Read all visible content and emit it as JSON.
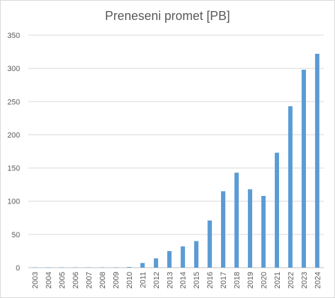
{
  "chart_data": {
    "type": "bar",
    "title": "Preneseni promet [PB]",
    "xlabel": "",
    "ylabel": "",
    "categories": [
      "2003",
      "2004",
      "2005",
      "2006",
      "2007",
      "2008",
      "2009",
      "2010",
      "2011",
      "2012",
      "2013",
      "2014",
      "2015",
      "2016",
      "2017",
      "2018",
      "2019",
      "2020",
      "2021",
      "2022",
      "2023",
      "2024"
    ],
    "series": [
      {
        "values": [
          0.5,
          0.5,
          0.5,
          0.5,
          0.5,
          0.5,
          0.5,
          1,
          7,
          14,
          25,
          32,
          40,
          71,
          115,
          143,
          118,
          108,
          173,
          243,
          298,
          322
        ]
      }
    ],
    "ylim": [
      0,
      350
    ],
    "yticks": [
      0,
      50,
      100,
      150,
      200,
      250,
      300,
      350
    ],
    "grid": true,
    "legend": "none",
    "bar_color": "#5b9bd5",
    "grid_color": "#d9d9d9"
  }
}
